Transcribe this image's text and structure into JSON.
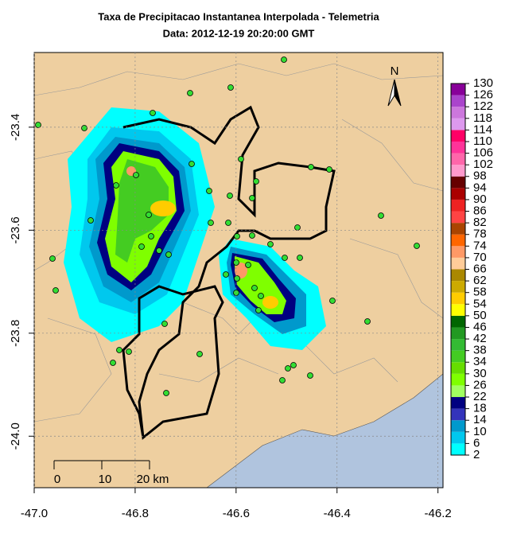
{
  "chart_data": {
    "type": "map",
    "title": "Taxa de Precipitacao Instantanea Interpolada - Telemetria",
    "subtitle": "Data: 2012-12-19 20:20:00 GMT",
    "xlim": [
      -47.0,
      -46.19
    ],
    "ylim": [
      -24.1,
      -23.255
    ],
    "xticks": [
      {
        "value": -47.0,
        "label": "-47.0"
      },
      -46.8,
      -46.6,
      -46.4,
      -46.2
    ],
    "yticks": [
      -23.4,
      -23.6,
      -23.8,
      {
        "value": -24.0,
        "label": "-24.0"
      }
    ],
    "north": "N",
    "scale_bar": [
      "0",
      "10",
      "20 km"
    ],
    "colorbar": {
      "ticks": [
        2,
        6,
        10,
        14,
        18,
        22,
        26,
        30,
        34,
        38,
        42,
        46,
        50,
        54,
        58,
        62,
        66,
        70,
        74,
        78,
        82,
        86,
        90,
        94,
        98,
        102,
        106,
        110,
        114,
        118,
        122,
        126,
        130
      ],
      "colors": [
        "#00ffff",
        "#00c8ee",
        "#0099cc",
        "#3333bb",
        "#000080",
        "#a0ff60",
        "#7fff00",
        "#66dd00",
        "#44cc22",
        "#33bb33",
        "#229922",
        "#006600",
        "#ffff00",
        "#ffcc00",
        "#ccaa00",
        "#aa8800",
        "#ffcc99",
        "#ff9966",
        "#ff6600",
        "#aa4400",
        "#ff4444",
        "#ee2222",
        "#aa0000",
        "#660000",
        "#ff99cc",
        "#ff66aa",
        "#ff3399",
        "#ff0066",
        "#dd99ee",
        "#cc77dd",
        "#aa44cc",
        "#880099"
      ]
    }
  }
}
